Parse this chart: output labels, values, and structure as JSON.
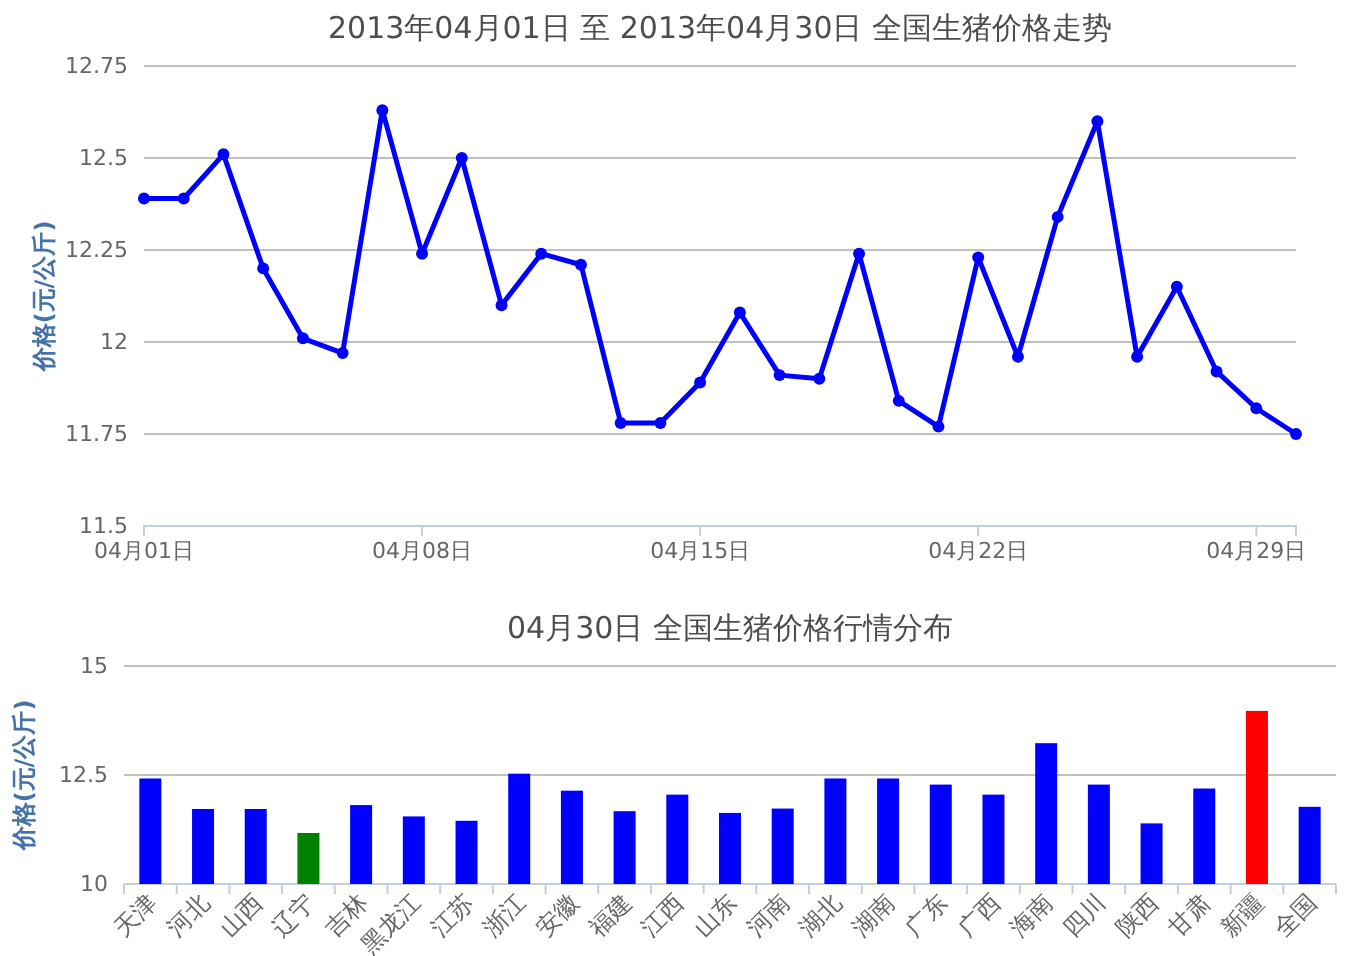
{
  "chart_data": [
    {
      "type": "line",
      "title": "2013年04月01日  至  2013年04月30日  全国生猪价格走势",
      "ylabel": "价格(元/公斤)",
      "x": [
        "2013-04-01",
        "2013-04-02",
        "2013-04-03",
        "2013-04-04",
        "2013-04-05",
        "2013-04-06",
        "2013-04-07",
        "2013-04-08",
        "2013-04-09",
        "2013-04-10",
        "2013-04-11",
        "2013-04-12",
        "2013-04-13",
        "2013-04-14",
        "2013-04-15",
        "2013-04-16",
        "2013-04-17",
        "2013-04-18",
        "2013-04-19",
        "2013-04-20",
        "2013-04-21",
        "2013-04-22",
        "2013-04-23",
        "2013-04-24",
        "2013-04-25",
        "2013-04-26",
        "2013-04-27",
        "2013-04-28",
        "2013-04-29",
        "2013-04-30"
      ],
      "series": [
        {
          "color": "#0000ff",
          "values": [
            12.39,
            12.39,
            12.51,
            12.2,
            12.01,
            11.97,
            12.63,
            12.24,
            12.5,
            12.1,
            12.24,
            12.21,
            11.78,
            11.78,
            11.89,
            12.08,
            11.91,
            11.9,
            12.24,
            11.84,
            11.77,
            12.23,
            11.96,
            12.34,
            12.6,
            11.96,
            12.15,
            11.92,
            11.82,
            11.75
          ]
        }
      ],
      "xlim": [
        "2013-04-01",
        "2013-04-30"
      ],
      "xticks": [
        {
          "value": "2013-04-01",
          "label": "04月01日"
        },
        {
          "value": "2013-04-08",
          "label": "04月08日"
        },
        {
          "value": "2013-04-15",
          "label": "04月15日"
        },
        {
          "value": "2013-04-22",
          "label": "04月22日"
        },
        {
          "value": "2013-04-29",
          "label": "04月29日"
        }
      ],
      "ylim": [
        11.5,
        12.75
      ],
      "yticks": [
        11.5,
        11.75,
        12,
        12.25,
        12.5,
        12.75
      ],
      "grid": "y",
      "marker": "circle",
      "line_style": "solid"
    },
    {
      "type": "bar",
      "title": "04月30日  全国生猪价格行情分布",
      "ylabel": "价格(元/公斤)",
      "categories": [
        "天津",
        "河北",
        "山西",
        "辽宁",
        "吉林",
        "黑龙江",
        "江苏",
        "浙江",
        "安徽",
        "福建",
        "江西",
        "山东",
        "河南",
        "湖北",
        "湖南",
        "广东",
        "广西",
        "海南",
        "四川",
        "陕西",
        "甘肃",
        "新疆",
        "全国"
      ],
      "values": [
        12.42,
        11.72,
        11.72,
        11.17,
        11.81,
        11.55,
        11.45,
        12.53,
        12.14,
        11.67,
        12.05,
        11.63,
        11.73,
        12.42,
        12.42,
        12.28,
        12.05,
        13.23,
        12.28,
        11.39,
        12.19,
        13.97,
        11.77
      ],
      "colors": [
        "#0000ff",
        "#0000ff",
        "#0000ff",
        "#008000",
        "#0000ff",
        "#0000ff",
        "#0000ff",
        "#0000ff",
        "#0000ff",
        "#0000ff",
        "#0000ff",
        "#0000ff",
        "#0000ff",
        "#0000ff",
        "#0000ff",
        "#0000ff",
        "#0000ff",
        "#0000ff",
        "#0000ff",
        "#0000ff",
        "#0000ff",
        "#ff0000",
        "#0000ff"
      ],
      "ylim": [
        10,
        15
      ],
      "yticks": [
        10,
        12.5,
        15
      ],
      "grid": "y"
    }
  ]
}
